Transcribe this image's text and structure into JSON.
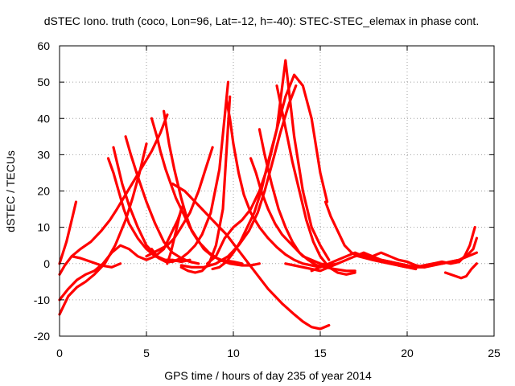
{
  "chart_data": {
    "type": "scatter",
    "title": "dSTEC Iono. truth (coco, Lon=96, Lat=-12, h=-40): STEC-STEC_elemax in phase cont.",
    "xlabel": "GPS time / hours of day 235 of year 2014",
    "ylabel": "dSTEC  / TECUs",
    "xlim": [
      0,
      25
    ],
    "ylim": [
      -20,
      60
    ],
    "xticks": [
      0,
      5,
      10,
      15,
      20,
      25
    ],
    "yticks": [
      -20,
      -10,
      0,
      10,
      20,
      30,
      40,
      50,
      60
    ],
    "grid": true,
    "marker": "+",
    "color": "#ff0000",
    "series": [
      {
        "x": [
          0.0,
          0.2,
          0.4,
          0.6,
          0.8,
          0.95
        ],
        "y": [
          0.0,
          3.0,
          6.0,
          10.0,
          14.0,
          17.0
        ]
      },
      {
        "x": [
          0.0,
          0.3,
          0.7,
          1.2,
          1.8,
          2.4,
          2.9,
          3.3,
          3.8,
          4.3,
          4.8,
          5.3,
          5.8,
          6.2
        ],
        "y": [
          -3.0,
          -0.5,
          2.0,
          4.0,
          6.0,
          9.0,
          12.0,
          15.0,
          19.0,
          23.0,
          27.0,
          31.0,
          36.0,
          41.0
        ]
      },
      {
        "x": [
          0.0,
          0.5,
          1.0,
          1.5,
          2.0,
          2.5,
          3.0,
          3.5,
          4.0,
          4.5,
          5.0,
          5.5,
          6.0,
          6.4,
          6.8,
          7.1
        ],
        "y": [
          -10.0,
          -7.0,
          -4.5,
          -3.0,
          -2.0,
          0.0,
          3.0,
          5.0,
          4.0,
          2.0,
          1.0,
          2.0,
          4.0,
          8.0,
          12.0,
          16.0
        ]
      },
      {
        "x": [
          0.0,
          0.5,
          1.0,
          1.5,
          2.0,
          2.6,
          3.2,
          3.8,
          4.2,
          4.6,
          5.0
        ],
        "y": [
          -14.0,
          -9.0,
          -6.5,
          -5.0,
          -3.0,
          0.0,
          5.0,
          12.0,
          18.0,
          25.0,
          33.0
        ]
      },
      {
        "x": [
          0.7,
          1.2,
          1.8,
          2.4,
          3.0,
          3.5
        ],
        "y": [
          2.0,
          1.5,
          0.5,
          -0.5,
          -1.0,
          0.0
        ]
      },
      {
        "x": [
          2.8,
          3.1,
          3.4,
          3.7,
          4.0,
          4.5,
          5.0,
          5.5,
          6.0,
          6.5,
          7.0,
          7.5
        ],
        "y": [
          29.0,
          25.0,
          20.0,
          15.0,
          11.0,
          7.0,
          4.0,
          2.0,
          1.0,
          1.0,
          0.5,
          1.0
        ]
      },
      {
        "x": [
          3.1,
          3.3,
          3.6,
          4.0,
          4.5,
          5.0,
          5.6,
          6.3,
          7.0
        ],
        "y": [
          32.0,
          28.0,
          22.0,
          16.0,
          10.0,
          5.0,
          2.0,
          0.5,
          1.0
        ]
      },
      {
        "x": [
          3.8,
          4.1,
          4.5,
          5.0,
          5.5,
          6.0,
          6.5,
          7.0,
          7.5,
          8.0
        ],
        "y": [
          35.0,
          30.0,
          24.0,
          17.0,
          11.0,
          6.0,
          3.0,
          1.5,
          0.5,
          0.0
        ]
      },
      {
        "x": [
          5.3,
          5.6,
          5.8,
          6.1,
          6.4,
          6.7,
          7.1,
          7.5,
          7.9,
          8.3,
          8.8,
          9.3,
          10.0,
          10.5
        ],
        "y": [
          40.0,
          35.0,
          31.0,
          26.0,
          22.0,
          18.0,
          14.0,
          10.0,
          7.0,
          4.0,
          2.0,
          1.0,
          0.5,
          0.0
        ]
      },
      {
        "x": [
          6.0,
          6.3,
          6.6,
          7.0,
          7.3,
          7.6,
          8.0,
          8.6,
          9.2,
          9.8,
          10.5,
          11.0,
          11.5
        ],
        "y": [
          42.0,
          33.0,
          26.0,
          18.0,
          13.0,
          9.0,
          6.0,
          3.0,
          1.0,
          0.0,
          -0.5,
          -0.5,
          0.0
        ]
      },
      {
        "x": [
          5.0,
          5.4,
          5.8,
          6.2,
          6.6,
          7.0,
          7.5,
          8.0,
          8.4,
          8.8
        ],
        "y": [
          2.0,
          3.0,
          4.0,
          5.0,
          7.0,
          10.0,
          14.0,
          20.0,
          26.0,
          32.0
        ]
      },
      {
        "x": [
          5.3,
          5.7,
          6.1,
          6.5,
          7.0,
          7.4,
          7.8,
          8.2,
          8.7,
          9.2,
          9.7
        ],
        "y": [
          4.0,
          1.5,
          0.5,
          0.5,
          1.5,
          3.0,
          5.0,
          8.0,
          14.0,
          26.0,
          50.0
        ]
      },
      {
        "x": [
          7.0,
          7.4,
          7.8,
          8.2,
          8.6,
          9.0,
          9.4,
          9.8
        ],
        "y": [
          -1.0,
          -2.0,
          -2.5,
          -2.0,
          0.0,
          5.0,
          15.0,
          46.0
        ]
      },
      {
        "x": [
          6.2,
          6.4,
          6.6,
          6.8,
          7.0
        ],
        "y": [
          0.0,
          3.0,
          7.0,
          11.0,
          15.0
        ]
      },
      {
        "x": [
          9.6,
          9.8,
          10.0,
          10.3,
          10.6,
          11.0,
          11.5,
          12.0,
          12.5,
          13.0,
          13.5,
          14.0,
          14.5,
          15.0
        ],
        "y": [
          45.0,
          40.0,
          33.0,
          25.0,
          19.0,
          14.0,
          10.0,
          7.0,
          4.5,
          2.5,
          1.0,
          0.0,
          -0.5,
          -1.0
        ]
      },
      {
        "x": [
          8.5,
          9.0,
          9.5,
          10.0,
          10.5,
          11.0,
          11.5,
          12.0,
          12.5,
          13.0,
          13.5,
          14.0,
          14.5,
          15.0,
          15.5
        ],
        "y": [
          0.0,
          2.0,
          7.0,
          10.0,
          12.0,
          15.0,
          20.0,
          27.0,
          37.0,
          56.0,
          35.0,
          20.0,
          10.0,
          5.0,
          1.0
        ]
      },
      {
        "x": [
          7.0,
          7.6,
          8.3,
          9.0,
          9.7,
          10.3,
          10.9,
          11.4,
          11.8,
          12.2,
          12.7,
          13.2,
          13.6
        ],
        "y": [
          -0.5,
          -1.0,
          -1.0,
          0.0,
          2.0,
          5.0,
          9.0,
          14.0,
          20.0,
          27.0,
          36.0,
          44.0,
          49.0
        ]
      },
      {
        "x": [
          8.8,
          9.2,
          9.6,
          10.0,
          10.4,
          10.8,
          11.2,
          11.6,
          12.0,
          12.5,
          13.0,
          13.5,
          14.0,
          14.5,
          15.0,
          15.4
        ],
        "y": [
          -1.5,
          -1.0,
          0.5,
          3.0,
          6.0,
          10.0,
          14.0,
          20.0,
          28.0,
          37.0,
          46.0,
          52.0,
          49.0,
          40.0,
          25.0,
          17.0
        ]
      },
      {
        "x": [
          6.5,
          7.2,
          8.0,
          8.8,
          9.6,
          10.4,
          11.2,
          12.0,
          12.8,
          13.5,
          14.0,
          14.5,
          15.0,
          15.5
        ],
        "y": [
          22.0,
          20.0,
          16.0,
          12.0,
          8.0,
          3.0,
          -2.0,
          -7.0,
          -11.0,
          -14.0,
          -16.0,
          -17.5,
          -18.0,
          -17.0
        ]
      },
      {
        "x": [
          11.0,
          11.3,
          11.6,
          12.0,
          12.4,
          12.8,
          13.2,
          13.6,
          14.0,
          14.5,
          15.0,
          15.5,
          16.0
        ],
        "y": [
          29.0,
          25.0,
          20.0,
          15.0,
          11.0,
          8.0,
          6.0,
          4.0,
          2.0,
          1.0,
          0.0,
          -0.5,
          0.0
        ]
      },
      {
        "x": [
          11.5,
          11.8,
          12.2,
          12.6,
          13.0,
          13.4,
          13.8,
          14.3,
          14.8,
          15.3,
          15.8,
          16.5,
          17.0
        ],
        "y": [
          37.0,
          30.0,
          22.0,
          15.0,
          10.0,
          6.0,
          3.0,
          1.0,
          -0.5,
          -1.0,
          -1.5,
          -2.0,
          -2.0
        ]
      },
      {
        "x": [
          12.5,
          12.8,
          13.1,
          13.4,
          13.8,
          14.2,
          14.6,
          15.0,
          15.5,
          16.0,
          16.5,
          17.0
        ],
        "y": [
          49.0,
          42.0,
          35.0,
          28.0,
          20.0,
          12.0,
          6.0,
          2.0,
          -1.0,
          -2.5,
          -3.0,
          -2.5
        ]
      },
      {
        "x": [
          15.3,
          15.6,
          16.0,
          16.4,
          16.8,
          17.2,
          17.6,
          18.0,
          18.5,
          19.0,
          19.5,
          20.0,
          20.5
        ],
        "y": [
          17.0,
          13.0,
          9.0,
          5.0,
          3.0,
          2.0,
          1.5,
          1.0,
          0.5,
          0.0,
          -0.5,
          -1.0,
          -1.5
        ]
      },
      {
        "x": [
          13.0,
          13.5,
          14.0,
          14.5,
          15.0,
          15.5,
          16.0,
          16.5,
          17.0,
          17.5,
          18.0,
          18.5,
          19.0,
          19.5,
          20.0
        ],
        "y": [
          0.0,
          -0.5,
          -1.0,
          -1.5,
          -2.0,
          -1.0,
          0.0,
          1.0,
          2.0,
          2.5,
          2.0,
          1.0,
          0.5,
          0.0,
          -0.5
        ]
      },
      {
        "x": [
          14.5,
          15.0,
          15.5,
          16.0,
          16.5,
          17.0,
          17.5,
          18.0,
          18.5,
          19.0,
          19.5,
          20.0,
          20.5,
          21.0
        ],
        "y": [
          -2.0,
          -1.0,
          0.0,
          1.0,
          2.0,
          3.0,
          2.0,
          1.5,
          1.0,
          0.5,
          0.0,
          -0.5,
          -1.0,
          -1.0
        ]
      },
      {
        "x": [
          17.0,
          17.5,
          18.0,
          18.5,
          19.0,
          19.5,
          20.0,
          20.5,
          21.0,
          21.5,
          22.0,
          22.5,
          23.0,
          23.5,
          24.0
        ],
        "y": [
          2.0,
          3.0,
          2.0,
          3.0,
          2.0,
          1.0,
          0.5,
          -0.5,
          -1.0,
          -0.5,
          0.0,
          0.5,
          1.0,
          2.0,
          3.0
        ]
      },
      {
        "x": [
          19.5,
          20.0,
          20.5,
          21.0,
          21.5,
          22.0,
          22.5,
          23.0,
          23.3,
          23.6,
          23.9
        ],
        "y": [
          -0.5,
          -1.0,
          -1.0,
          -0.5,
          0.0,
          0.5,
          0.0,
          0.5,
          2.0,
          5.0,
          10.0
        ]
      },
      {
        "x": [
          20.5,
          21.0,
          21.5,
          22.0,
          22.5,
          23.0,
          23.4,
          23.8,
          24.0
        ],
        "y": [
          -1.0,
          -0.5,
          0.0,
          0.0,
          0.5,
          1.0,
          2.0,
          4.0,
          7.0
        ]
      },
      {
        "x": [
          22.2,
          22.5,
          22.8,
          23.1,
          23.4,
          23.7,
          24.0
        ],
        "y": [
          -2.5,
          -3.0,
          -3.5,
          -4.0,
          -3.5,
          -1.5,
          0.0
        ]
      }
    ]
  }
}
